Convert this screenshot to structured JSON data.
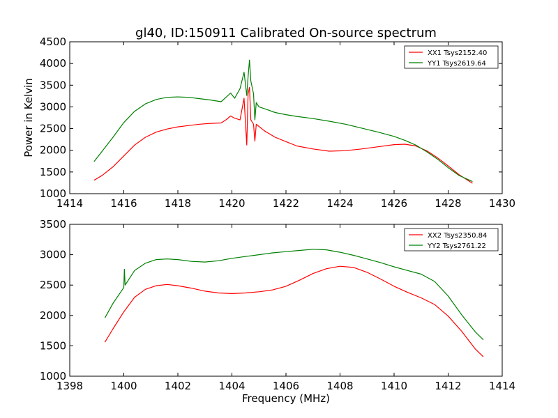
{
  "figure_title": "gl40, ID:150911 Calibrated On-source spectrum",
  "colors": {
    "red": "#ff0000",
    "green": "#008000",
    "axis": "#000000"
  },
  "chart_data": [
    {
      "type": "line",
      "title": "gl40, ID:150911 Calibrated On-source spectrum",
      "xlabel": "",
      "ylabel": "Power in Kelvin",
      "xlim": [
        1414,
        1430
      ],
      "ylim": [
        1000,
        4500
      ],
      "xticks": [
        1414,
        1416,
        1418,
        1420,
        1422,
        1424,
        1426,
        1428,
        1430
      ],
      "yticks": [
        1000,
        1500,
        2000,
        2500,
        3000,
        3500,
        4000,
        4500
      ],
      "grid": false,
      "legend_position": "top-right",
      "series": [
        {
          "name": "XX1 Tsys2152.40",
          "color": "#ff0000",
          "x": [
            1414.9,
            1415.2,
            1415.6,
            1416.0,
            1416.4,
            1416.8,
            1417.2,
            1417.6,
            1418.0,
            1418.4,
            1418.8,
            1419.2,
            1419.6,
            1419.8,
            1419.95,
            1420.1,
            1420.3,
            1420.45,
            1420.55,
            1420.6,
            1420.65,
            1420.7,
            1420.8,
            1420.85,
            1420.9,
            1421.0,
            1421.2,
            1421.6,
            1422.0,
            1422.4,
            1423.0,
            1423.6,
            1424.2,
            1424.8,
            1425.4,
            1426.0,
            1426.4,
            1426.8,
            1427.2,
            1427.6,
            1428.0,
            1428.4,
            1428.9
          ],
          "y": [
            1310,
            1420,
            1620,
            1870,
            2120,
            2300,
            2420,
            2490,
            2540,
            2570,
            2600,
            2620,
            2630,
            2710,
            2790,
            2740,
            2700,
            3200,
            2120,
            3300,
            3450,
            2700,
            2600,
            2210,
            2600,
            2550,
            2450,
            2300,
            2200,
            2100,
            2030,
            1980,
            1990,
            2030,
            2080,
            2130,
            2140,
            2100,
            1990,
            1830,
            1640,
            1440,
            1240
          ]
        },
        {
          "name": "YY1 Tsys2619.64",
          "color": "#008000",
          "x": [
            1414.9,
            1415.2,
            1415.6,
            1416.0,
            1416.4,
            1416.8,
            1417.2,
            1417.6,
            1418.0,
            1418.4,
            1418.8,
            1419.2,
            1419.6,
            1419.8,
            1419.95,
            1420.1,
            1420.3,
            1420.45,
            1420.55,
            1420.6,
            1420.65,
            1420.7,
            1420.8,
            1420.85,
            1420.9,
            1421.0,
            1421.2,
            1421.6,
            1422.0,
            1422.4,
            1423.0,
            1423.6,
            1424.2,
            1424.8,
            1425.4,
            1426.0,
            1426.4,
            1426.8,
            1427.2,
            1427.6,
            1428.0,
            1428.4,
            1428.9
          ],
          "y": [
            1740,
            1980,
            2300,
            2640,
            2900,
            3070,
            3170,
            3220,
            3230,
            3220,
            3190,
            3160,
            3120,
            3230,
            3320,
            3200,
            3420,
            3800,
            3260,
            3700,
            4080,
            3600,
            3300,
            2700,
            3100,
            3000,
            2960,
            2870,
            2820,
            2780,
            2730,
            2670,
            2600,
            2510,
            2420,
            2320,
            2230,
            2120,
            1970,
            1800,
            1600,
            1420,
            1280
          ]
        }
      ]
    },
    {
      "type": "line",
      "title": "",
      "xlabel": "Frequency (MHz)",
      "ylabel": "",
      "xlim": [
        1398,
        1414
      ],
      "ylim": [
        1000,
        3500
      ],
      "xticks": [
        1398,
        1400,
        1402,
        1404,
        1406,
        1408,
        1410,
        1412,
        1414
      ],
      "yticks": [
        1000,
        1500,
        2000,
        2500,
        3000,
        3500
      ],
      "grid": false,
      "legend_position": "top-right",
      "series": [
        {
          "name": "XX2 Tsys2350.84",
          "color": "#ff0000",
          "x": [
            1399.3,
            1399.6,
            1400.0,
            1400.4,
            1400.8,
            1401.2,
            1401.6,
            1402.0,
            1402.5,
            1403.0,
            1403.5,
            1404.0,
            1404.5,
            1405.0,
            1405.5,
            1406.0,
            1406.5,
            1407.0,
            1407.5,
            1408.0,
            1408.5,
            1409.0,
            1409.5,
            1410.0,
            1410.5,
            1411.0,
            1411.5,
            1412.0,
            1412.5,
            1413.0,
            1413.3
          ],
          "y": [
            1560,
            1780,
            2060,
            2300,
            2430,
            2490,
            2510,
            2490,
            2450,
            2400,
            2370,
            2360,
            2370,
            2390,
            2420,
            2480,
            2580,
            2690,
            2770,
            2810,
            2790,
            2710,
            2600,
            2480,
            2380,
            2290,
            2180,
            1990,
            1740,
            1450,
            1320
          ]
        },
        {
          "name": "YY2 Tsys2761.22",
          "color": "#008000",
          "x": [
            1399.3,
            1399.6,
            1400.0,
            1400.02,
            1400.05,
            1400.4,
            1400.8,
            1401.2,
            1401.6,
            1402.0,
            1402.5,
            1403.0,
            1403.5,
            1404.0,
            1404.5,
            1405.0,
            1405.5,
            1406.0,
            1406.5,
            1407.0,
            1407.5,
            1408.0,
            1408.5,
            1409.0,
            1409.5,
            1410.0,
            1410.5,
            1411.0,
            1411.5,
            1412.0,
            1412.5,
            1413.0,
            1413.3
          ],
          "y": [
            1960,
            2200,
            2460,
            2760,
            2500,
            2740,
            2860,
            2920,
            2930,
            2920,
            2890,
            2880,
            2900,
            2940,
            2970,
            3000,
            3030,
            3050,
            3070,
            3090,
            3080,
            3040,
            2990,
            2930,
            2870,
            2800,
            2740,
            2680,
            2560,
            2320,
            2010,
            1730,
            1600
          ]
        }
      ]
    }
  ]
}
